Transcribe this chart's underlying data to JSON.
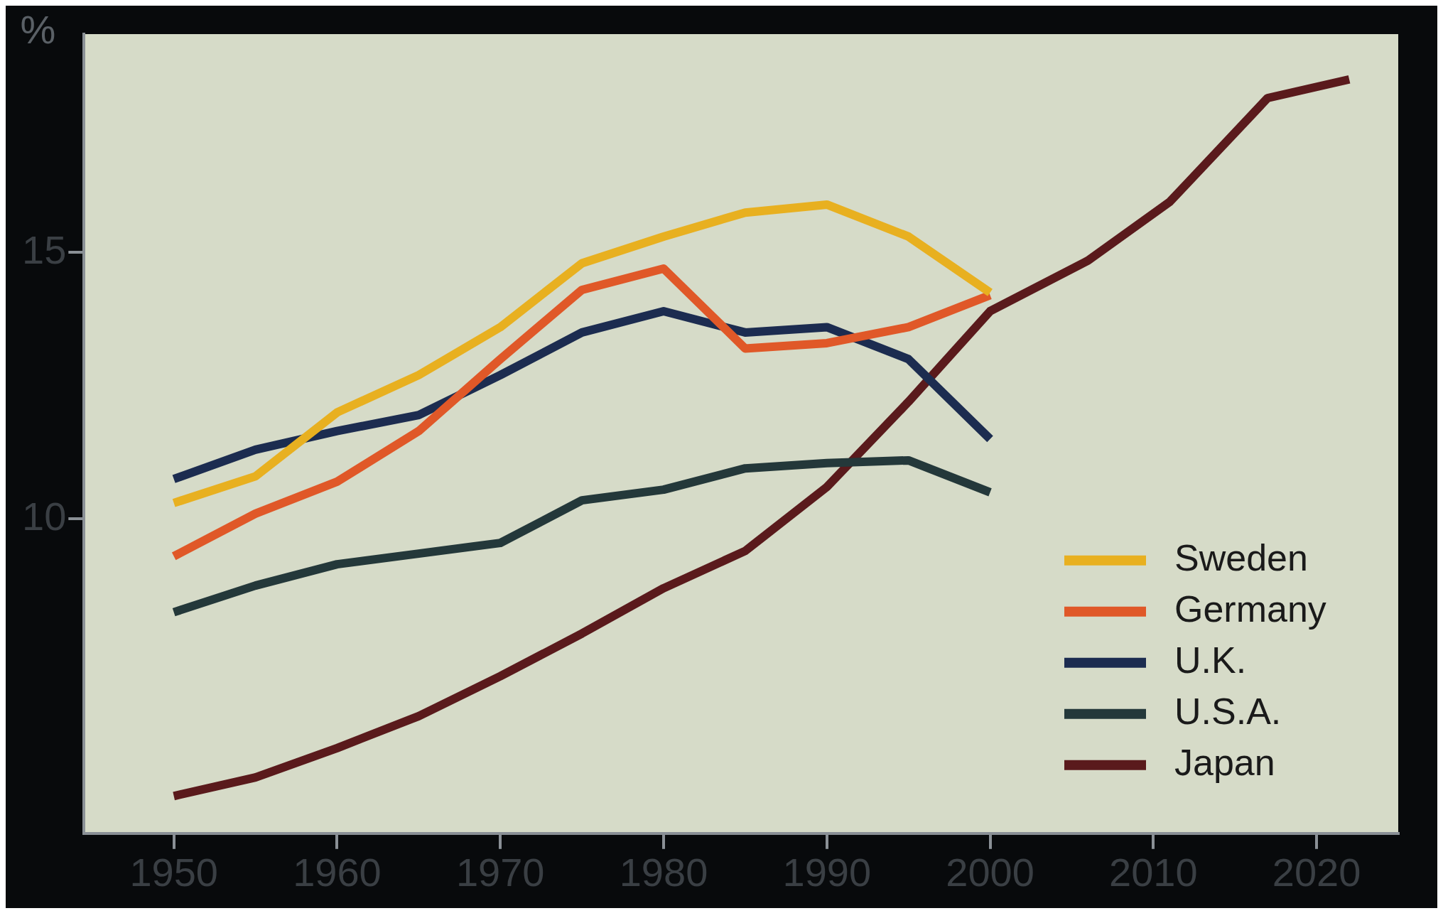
{
  "chart_data": {
    "type": "line",
    "ylabel": "%",
    "xlim": [
      1944.5,
      2025
    ],
    "ylim": [
      4.1,
      19.1
    ],
    "xticks": [
      1950,
      1960,
      1970,
      1980,
      1990,
      2000,
      2010,
      2020
    ],
    "yticks": [
      10,
      15
    ],
    "grid": false,
    "legend": "bottom right",
    "marker": "none",
    "line_style": "solid",
    "series": [
      {
        "name": "Sweden",
        "color": "#e8b020",
        "x": [
          1950,
          1955,
          1960,
          1965,
          1970,
          1975,
          1980,
          1985,
          1990,
          1995,
          2000
        ],
        "values": [
          10.3,
          10.8,
          12.0,
          12.7,
          13.6,
          14.8,
          15.3,
          15.75,
          15.9,
          15.3,
          14.25
        ]
      },
      {
        "name": "Germany",
        "color": "#e05828",
        "x": [
          1950,
          1955,
          1960,
          1965,
          1970,
          1975,
          1980,
          1985,
          1990,
          1995,
          2000
        ],
        "values": [
          9.3,
          10.1,
          10.7,
          11.65,
          13.0,
          14.3,
          14.7,
          13.2,
          13.3,
          13.6,
          14.2
        ]
      },
      {
        "name": "U.K.",
        "color": "#1c2c50",
        "x": [
          1950,
          1955,
          1960,
          1965,
          1970,
          1975,
          1980,
          1985,
          1990,
          1995,
          2000
        ],
        "values": [
          10.75,
          11.3,
          11.65,
          11.95,
          12.7,
          13.5,
          13.9,
          13.5,
          13.6,
          13.0,
          11.5
        ]
      },
      {
        "name": "U.S.A.",
        "color": "#24383a",
        "x": [
          1950,
          1955,
          1960,
          1965,
          1970,
          1975,
          1980,
          1985,
          1990,
          1995,
          2000
        ],
        "values": [
          8.25,
          8.75,
          9.15,
          9.35,
          9.55,
          10.35,
          10.55,
          10.95,
          11.05,
          11.1,
          10.5
        ]
      },
      {
        "name": "Japan",
        "color": "#5a1a1c",
        "x": [
          1950,
          1955,
          1960,
          1965,
          1970,
          1975,
          1980,
          1985,
          1990,
          1995,
          2000,
          2006,
          2011,
          2017,
          2022
        ],
        "values": [
          4.8,
          5.15,
          5.7,
          6.3,
          7.05,
          7.85,
          8.7,
          9.4,
          10.6,
          12.2,
          13.9,
          14.85,
          15.95,
          17.9,
          18.25
        ]
      }
    ]
  }
}
